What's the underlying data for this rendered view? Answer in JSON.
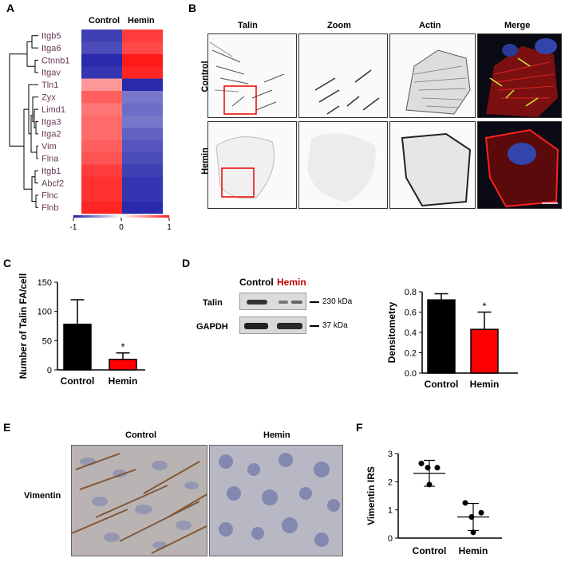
{
  "panels": {
    "A": "A",
    "B": "B",
    "C": "C",
    "D": "D",
    "E": "E",
    "F": "F"
  },
  "heatmap": {
    "col_labels": [
      "Control",
      "Hemin"
    ],
    "genes": [
      "Itgb5",
      "Itga6",
      "Ctnnb1",
      "Itgav",
      "Tln1",
      "Zyx",
      "Limd1",
      "Itga3",
      "Itga2",
      "Vim",
      "Flna",
      "Itgb1",
      "Abcf2",
      "Flnc",
      "Flnb"
    ],
    "values": [
      [
        -0.85,
        0.85
      ],
      [
        -0.8,
        0.8
      ],
      [
        -0.95,
        1.0
      ],
      [
        -0.9,
        0.95
      ],
      [
        0.45,
        -0.95
      ],
      [
        0.7,
        -0.6
      ],
      [
        0.6,
        -0.65
      ],
      [
        0.65,
        -0.6
      ],
      [
        0.65,
        -0.7
      ],
      [
        0.7,
        -0.75
      ],
      [
        0.75,
        -0.8
      ],
      [
        0.85,
        -0.85
      ],
      [
        0.9,
        -0.9
      ],
      [
        0.9,
        -0.9
      ],
      [
        0.95,
        -0.95
      ]
    ],
    "scale_ticks": [
      "-1",
      "0",
      "1"
    ],
    "colors": {
      "low": "#1e1ea8",
      "mid": "#ffffff",
      "high": "#ff1a1a"
    }
  },
  "microscopy": {
    "columns": [
      "Talin",
      "Zoom",
      "Actin",
      "Merge"
    ],
    "rows": [
      "Control",
      "Hemin"
    ]
  },
  "panel_c": {
    "ylabel": "Number of Talin FA/cell",
    "yticks": [
      "0",
      "50",
      "100",
      "150"
    ],
    "ymax": 150,
    "categories": [
      "Control",
      "Hemin"
    ],
    "values": [
      78,
      18
    ],
    "errors": [
      42,
      11
    ],
    "colors": [
      "#000000",
      "#ff0000"
    ],
    "sig": "*"
  },
  "blot": {
    "lanes": [
      "Control",
      "Hemin"
    ],
    "proteins": [
      "Talin",
      "GAPDH"
    ],
    "markers": [
      "230 kDa",
      "37 kDa"
    ],
    "hemin_color": "#c00000"
  },
  "panel_d": {
    "ylabel": "Densitometry",
    "yticks": [
      "0.0",
      "0.2",
      "0.4",
      "0.6",
      "0.8"
    ],
    "ymax": 0.8,
    "categories": [
      "Control",
      "Hemin"
    ],
    "values": [
      0.72,
      0.43
    ],
    "errors": [
      0.06,
      0.17
    ],
    "colors": [
      "#000000",
      "#ff0000"
    ],
    "sig": "*"
  },
  "ihc": {
    "columns": [
      "Control",
      "Hemin"
    ],
    "row": "Vimentin"
  },
  "panel_f": {
    "ylabel": "Vimentin IRS",
    "yticks": [
      "0",
      "1",
      "2",
      "3"
    ],
    "ymax": 3,
    "categories": [
      "Control",
      "Hemin"
    ],
    "points": [
      [
        2.65,
        2.5,
        2.5,
        1.9
      ],
      [
        1.25,
        0.9,
        0.75,
        0.2
      ]
    ],
    "means": [
      2.3,
      0.75
    ],
    "sd": [
      0.46,
      0.48
    ]
  },
  "chart_data": [
    {
      "type": "heatmap",
      "x": [
        "Control",
        "Hemin"
      ],
      "y": [
        "Itgb5",
        "Itga6",
        "Ctnnb1",
        "Itgav",
        "Tln1",
        "Zyx",
        "Limd1",
        "Itga3",
        "Itga2",
        "Vim",
        "Flna",
        "Itgb1",
        "Abcf2",
        "Flnc",
        "Flnb"
      ],
      "values": [
        [
          -0.85,
          0.85
        ],
        [
          -0.8,
          0.8
        ],
        [
          -0.95,
          1.0
        ],
        [
          -0.9,
          0.95
        ],
        [
          0.45,
          -0.95
        ],
        [
          0.7,
          -0.6
        ],
        [
          0.6,
          -0.65
        ],
        [
          0.65,
          -0.6
        ],
        [
          0.65,
          -0.7
        ],
        [
          0.7,
          -0.75
        ],
        [
          0.75,
          -0.8
        ],
        [
          0.85,
          -0.85
        ],
        [
          0.9,
          -0.9
        ],
        [
          0.9,
          -0.9
        ],
        [
          0.95,
          -0.95
        ]
      ],
      "scale": [
        -1,
        0,
        1
      ]
    },
    {
      "type": "bar",
      "categories": [
        "Control",
        "Hemin"
      ],
      "values": [
        78,
        18
      ],
      "errors": [
        42,
        11
      ],
      "ylabel": "Number of Talin FA/cell",
      "ylim": [
        0,
        150
      ]
    },
    {
      "type": "bar",
      "categories": [
        "Control",
        "Hemin"
      ],
      "values": [
        0.72,
        0.43
      ],
      "errors": [
        0.06,
        0.17
      ],
      "ylabel": "Densitometry",
      "ylim": [
        0,
        0.8
      ]
    },
    {
      "type": "scatter",
      "categories": [
        "Control",
        "Hemin"
      ],
      "values": [
        [
          2.65,
          2.5,
          2.5,
          1.9
        ],
        [
          1.25,
          0.9,
          0.75,
          0.2
        ]
      ],
      "ylabel": "Vimentin IRS",
      "ylim": [
        0,
        3
      ]
    }
  ]
}
